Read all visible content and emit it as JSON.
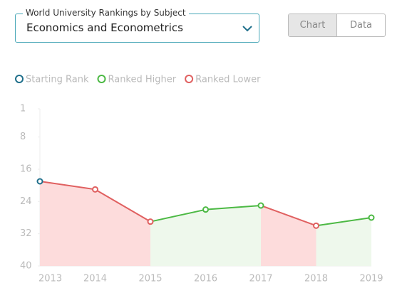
{
  "dropdown": {
    "label": "World University Rankings by Subject",
    "value": "Economics and Econometrics"
  },
  "view_toggle": [
    "Chart",
    "Data"
  ],
  "chart_data": {
    "type": "line",
    "legend": [
      {
        "name": "Starting Rank",
        "color": "#1f6f8b"
      },
      {
        "name": "Ranked Higher",
        "color": "#4cb944"
      },
      {
        "name": "Ranked Lower",
        "color": "#e06060"
      }
    ],
    "x": [
      2013,
      2014,
      2015,
      2016,
      2017,
      2018,
      2019
    ],
    "xlim": [
      2013,
      2019
    ],
    "values": [
      19,
      21,
      29,
      26,
      25,
      30,
      28
    ],
    "ylim": [
      40,
      1
    ],
    "yticks": [
      1,
      8,
      16,
      24,
      32,
      40
    ]
  }
}
